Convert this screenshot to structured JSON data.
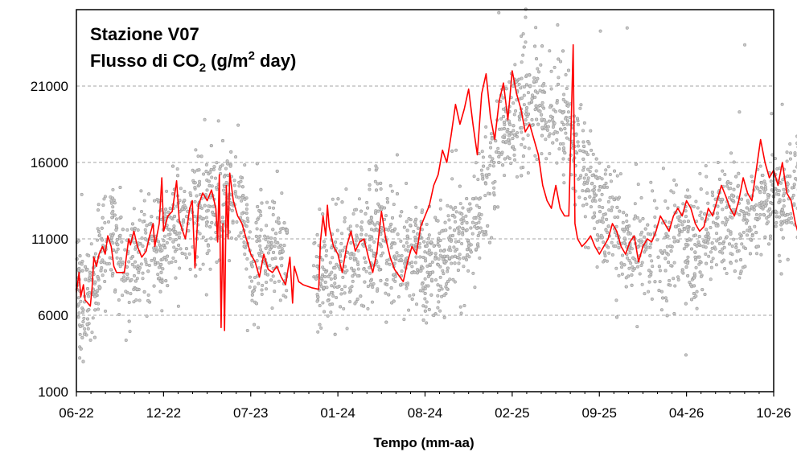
{
  "chart_data": {
    "type": "scatter",
    "title_line1": "Stazione V07",
    "title_line2": {
      "prefix": "Flusso di CO",
      "sub": "2",
      "middle": " (g/m",
      "sup": "2",
      "suffix": " day)"
    },
    "xlabel": "Tempo (mm-aa)",
    "ylabel": "",
    "ylim": [
      1000,
      26000
    ],
    "yticks": [
      1000,
      6000,
      11000,
      16000,
      21000
    ],
    "xticks": [
      "06-22",
      "12-22",
      "07-23",
      "01-24",
      "08-24",
      "02-25",
      "09-25",
      "04-26",
      "10-26"
    ],
    "grid": "horizontal-dashed",
    "colors": {
      "scatter": "#9a9a9a",
      "line": "#ff0000",
      "grid": "#a6a6a6",
      "axis": "#000000"
    },
    "series": [
      {
        "style": "scatter-grey",
        "mean_trend": [
          [
            0.0,
            8000
          ],
          [
            0.05,
            7200
          ],
          [
            0.1,
            7000
          ],
          [
            0.15,
            7800
          ],
          [
            0.2,
            9500
          ],
          [
            0.3,
            10500
          ],
          [
            0.38,
            11500
          ],
          [
            0.45,
            9000
          ],
          [
            0.5,
            8800
          ],
          [
            0.58,
            10200
          ],
          [
            0.7,
            11000
          ],
          [
            0.8,
            10000
          ],
          [
            0.9,
            11500
          ],
          [
            1.0,
            12500
          ],
          [
            1.1,
            12800
          ],
          [
            1.2,
            12500
          ],
          [
            1.3,
            13000
          ],
          [
            1.4,
            13500
          ],
          [
            1.5,
            13800
          ],
          [
            1.6,
            12500
          ],
          [
            1.65,
            8000
          ],
          [
            1.7,
            11000
          ],
          [
            1.8,
            10500
          ],
          [
            1.9,
            10000
          ],
          [
            2.0,
            9500
          ],
          [
            2.1,
            9000
          ],
          [
            2.2,
            8800
          ],
          [
            2.3,
            8500
          ],
          [
            2.7,
            10500
          ],
          [
            2.8,
            11500
          ],
          [
            2.9,
            10500
          ],
          [
            3.0,
            10000
          ],
          [
            3.1,
            10500
          ],
          [
            3.2,
            10000
          ],
          [
            3.3,
            9500
          ],
          [
            3.4,
            9200
          ],
          [
            3.5,
            10000
          ],
          [
            3.6,
            11000
          ],
          [
            3.7,
            12000
          ],
          [
            3.8,
            14000
          ],
          [
            3.9,
            16000
          ],
          [
            4.0,
            18000
          ],
          [
            4.1,
            19000
          ],
          [
            4.2,
            20000
          ],
          [
            4.3,
            20500
          ],
          [
            4.4,
            19500
          ],
          [
            4.5,
            19000
          ],
          [
            4.6,
            18000
          ],
          [
            4.7,
            16500
          ],
          [
            4.8,
            14500
          ],
          [
            4.9,
            13000
          ],
          [
            5.0,
            12500
          ],
          [
            5.1,
            11000
          ],
          [
            5.2,
            10500
          ],
          [
            5.3,
            10000
          ],
          [
            5.4,
            10500
          ],
          [
            5.5,
            10500
          ],
          [
            5.6,
            10800
          ],
          [
            5.7,
            11000
          ],
          [
            5.8,
            10000
          ],
          [
            5.9,
            11000
          ],
          [
            6.0,
            11500
          ],
          [
            6.1,
            12500
          ],
          [
            6.2,
            12000
          ],
          [
            6.3,
            12500
          ],
          [
            6.4,
            13500
          ],
          [
            6.5,
            13000
          ],
          [
            6.6,
            13500
          ],
          [
            6.7,
            14500
          ],
          [
            6.8,
            15000
          ],
          [
            6.9,
            14000
          ],
          [
            7.0,
            12500
          ],
          [
            7.05,
            12000
          ]
        ],
        "scatter_spread": 1800,
        "points_per_unit": 420,
        "outliers": [
          [
            3.95,
            25800
          ],
          [
            4.2,
            25500
          ],
          [
            4.5,
            25000
          ],
          [
            4.9,
            24600
          ],
          [
            5.15,
            24800
          ],
          [
            6.25,
            23700
          ],
          [
            7.0,
            23800
          ],
          [
            6.9,
            2200
          ],
          [
            7.0,
            2400
          ],
          [
            5.7,
            3400
          ],
          [
            1.6,
            5000
          ],
          [
            1.7,
            5200
          ],
          [
            6.5,
            19200
          ],
          [
            6.6,
            19800
          ],
          [
            1.2,
            18800
          ],
          [
            3.55,
            16800
          ],
          [
            3.0,
            16500
          ],
          [
            6.0,
            16000
          ],
          [
            0.05,
            13900
          ],
          [
            6.2,
            19300
          ]
        ]
      },
      {
        "style": "line-red",
        "values": [
          [
            0.0,
            7500
          ],
          [
            0.03,
            8800
          ],
          [
            0.05,
            7200
          ],
          [
            0.08,
            8000
          ],
          [
            0.1,
            7000
          ],
          [
            0.13,
            6800
          ],
          [
            0.16,
            6600
          ],
          [
            0.18,
            7800
          ],
          [
            0.2,
            9800
          ],
          [
            0.23,
            9200
          ],
          [
            0.26,
            10000
          ],
          [
            0.3,
            10500
          ],
          [
            0.33,
            10000
          ],
          [
            0.36,
            11200
          ],
          [
            0.4,
            10500
          ],
          [
            0.43,
            9200
          ],
          [
            0.46,
            8800
          ],
          [
            0.5,
            8800
          ],
          [
            0.55,
            8800
          ],
          [
            0.6,
            11000
          ],
          [
            0.62,
            10600
          ],
          [
            0.66,
            11500
          ],
          [
            0.7,
            10500
          ],
          [
            0.75,
            9800
          ],
          [
            0.8,
            10200
          ],
          [
            0.84,
            11200
          ],
          [
            0.88,
            12000
          ],
          [
            0.9,
            10500
          ],
          [
            0.95,
            12000
          ],
          [
            0.98,
            15000
          ],
          [
            1.0,
            11500
          ],
          [
            1.05,
            12500
          ],
          [
            1.1,
            12800
          ],
          [
            1.15,
            14800
          ],
          [
            1.18,
            12200
          ],
          [
            1.22,
            11500
          ],
          [
            1.25,
            11000
          ],
          [
            1.3,
            13000
          ],
          [
            1.33,
            13500
          ],
          [
            1.36,
            9100
          ],
          [
            1.4,
            13200
          ],
          [
            1.45,
            14000
          ],
          [
            1.5,
            13500
          ],
          [
            1.55,
            14200
          ],
          [
            1.6,
            13000
          ],
          [
            1.62,
            10800
          ],
          [
            1.64,
            15200
          ],
          [
            1.66,
            5200
          ],
          [
            1.68,
            12000
          ],
          [
            1.7,
            5000
          ],
          [
            1.72,
            14500
          ],
          [
            1.74,
            11000
          ],
          [
            1.76,
            15300
          ],
          [
            1.8,
            13500
          ],
          [
            1.85,
            12500
          ],
          [
            1.9,
            12000
          ],
          [
            1.95,
            11000
          ],
          [
            2.0,
            10000
          ],
          [
            2.05,
            9500
          ],
          [
            2.1,
            8500
          ],
          [
            2.15,
            10000
          ],
          [
            2.2,
            9000
          ],
          [
            2.25,
            8800
          ],
          [
            2.3,
            9200
          ],
          [
            2.35,
            8500
          ],
          [
            2.4,
            8000
          ],
          [
            2.45,
            9800
          ],
          [
            2.48,
            6800
          ],
          [
            2.5,
            9200
          ],
          [
            2.55,
            8200
          ],
          [
            2.6,
            8000
          ],
          [
            2.7,
            7800
          ],
          [
            2.78,
            7700
          ],
          [
            2.8,
            10800
          ],
          [
            2.83,
            12500
          ],
          [
            2.86,
            11200
          ],
          [
            2.88,
            13200
          ],
          [
            2.9,
            11800
          ],
          [
            2.95,
            10500
          ],
          [
            3.0,
            10000
          ],
          [
            3.05,
            8800
          ],
          [
            3.1,
            10500
          ],
          [
            3.15,
            11500
          ],
          [
            3.2,
            10200
          ],
          [
            3.25,
            10800
          ],
          [
            3.3,
            11000
          ],
          [
            3.35,
            9800
          ],
          [
            3.4,
            8800
          ],
          [
            3.45,
            10200
          ],
          [
            3.5,
            12800
          ],
          [
            3.55,
            11000
          ],
          [
            3.6,
            9800
          ],
          [
            3.65,
            9000
          ],
          [
            3.7,
            8600
          ],
          [
            3.75,
            8200
          ],
          [
            3.8,
            9500
          ],
          [
            3.85,
            10500
          ],
          [
            3.9,
            10000
          ],
          [
            3.95,
            11800
          ],
          [
            4.0,
            12500
          ],
          [
            4.05,
            13200
          ],
          [
            4.1,
            14500
          ],
          [
            4.15,
            15200
          ],
          [
            4.2,
            16800
          ],
          [
            4.25,
            16000
          ],
          [
            4.3,
            17800
          ],
          [
            4.35,
            19800
          ],
          [
            4.4,
            18500
          ],
          [
            4.45,
            19500
          ],
          [
            4.5,
            20800
          ],
          [
            4.55,
            18500
          ],
          [
            4.6,
            16500
          ],
          [
            4.65,
            20500
          ],
          [
            4.7,
            21800
          ],
          [
            4.75,
            19000
          ],
          [
            4.8,
            17500
          ],
          [
            4.85,
            20000
          ],
          [
            4.9,
            21200
          ],
          [
            4.95,
            18800
          ],
          [
            5.0,
            22000
          ],
          [
            5.05,
            20500
          ],
          [
            5.1,
            19500
          ],
          [
            5.15,
            18000
          ],
          [
            5.2,
            18500
          ],
          [
            5.25,
            17500
          ],
          [
            5.3,
            16500
          ],
          [
            5.35,
            14500
          ],
          [
            5.4,
            13500
          ],
          [
            5.45,
            13000
          ],
          [
            5.5,
            14500
          ],
          [
            5.55,
            13000
          ],
          [
            5.6,
            12500
          ],
          [
            5.65,
            12500
          ],
          [
            5.7,
            23700
          ],
          [
            5.72,
            12000
          ],
          [
            5.75,
            11000
          ],
          [
            5.8,
            10500
          ],
          [
            5.85,
            10800
          ],
          [
            5.9,
            11200
          ],
          [
            5.95,
            10500
          ],
          [
            6.0,
            10000
          ],
          [
            6.05,
            10500
          ],
          [
            6.1,
            11000
          ],
          [
            6.15,
            12000
          ],
          [
            6.2,
            11500
          ],
          [
            6.25,
            10500
          ],
          [
            6.3,
            10000
          ],
          [
            6.35,
            10800
          ],
          [
            6.4,
            11200
          ],
          [
            6.45,
            9500
          ],
          [
            6.5,
            10500
          ],
          [
            6.55,
            11000
          ],
          [
            6.6,
            10800
          ],
          [
            6.65,
            11500
          ],
          [
            6.7,
            12500
          ],
          [
            6.75,
            12000
          ],
          [
            6.8,
            11500
          ],
          [
            6.85,
            12500
          ],
          [
            6.9,
            13000
          ],
          [
            6.95,
            12500
          ],
          [
            7.0,
            13500
          ],
          [
            7.05,
            13000
          ],
          [
            7.1,
            12000
          ],
          [
            7.15,
            11500
          ],
          [
            7.2,
            11800
          ],
          [
            7.25,
            13000
          ],
          [
            7.3,
            12500
          ],
          [
            7.35,
            13500
          ],
          [
            7.4,
            14500
          ],
          [
            7.45,
            13800
          ],
          [
            7.5,
            13000
          ],
          [
            7.55,
            12500
          ],
          [
            7.6,
            13500
          ],
          [
            7.65,
            15000
          ],
          [
            7.7,
            14000
          ],
          [
            7.75,
            13500
          ],
          [
            7.8,
            15500
          ],
          [
            7.85,
            17500
          ],
          [
            7.9,
            16000
          ],
          [
            7.95,
            15000
          ],
          [
            8.0,
            15500
          ],
          [
            8.05,
            14500
          ],
          [
            8.1,
            16000
          ],
          [
            8.15,
            14000
          ],
          [
            8.2,
            13500
          ],
          [
            8.25,
            12000
          ],
          [
            8.3,
            11000
          ],
          [
            8.35,
            12500
          ],
          [
            8.4,
            16200
          ],
          [
            8.45,
            13000
          ],
          [
            8.5,
            10500
          ],
          [
            8.55,
            11500
          ],
          [
            8.6,
            13800
          ],
          [
            8.65,
            12000
          ]
        ]
      }
    ]
  }
}
